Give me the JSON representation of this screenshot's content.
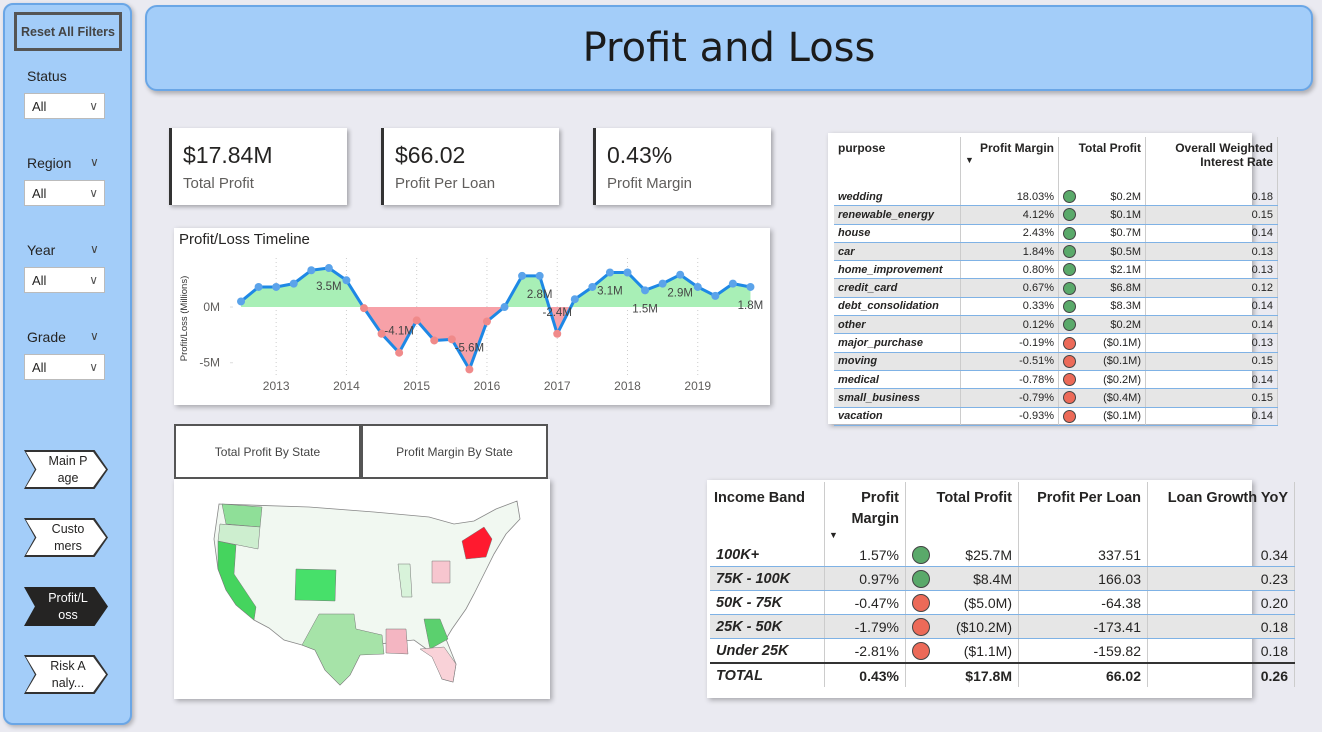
{
  "sidebar": {
    "reset_button": "Reset All Filters",
    "filters": [
      {
        "label": "Status",
        "value": "All"
      },
      {
        "label": "Region",
        "value": "All"
      },
      {
        "label": "Year",
        "value": "All"
      },
      {
        "label": "Grade",
        "value": "All"
      }
    ],
    "nav": [
      "Main Page",
      "Customers",
      "Profit/Loss",
      "Risk Analy..."
    ],
    "active_nav": 2
  },
  "header": {
    "title": "Profit and Loss"
  },
  "kpis": [
    {
      "value": "$17.84M",
      "label": "Total Profit"
    },
    {
      "value": "$66.02",
      "label": "Profit Per Loan"
    },
    {
      "value": "0.43%",
      "label": "Profit Margin"
    }
  ],
  "timeline": {
    "type": "line",
    "title": "Profit/Loss Timeline",
    "y_label": "Profit/Loss (Millions)",
    "x": [
      2012.5,
      2012.75,
      2013,
      2013.25,
      2013.5,
      2013.75,
      2014,
      2014.25,
      2014.5,
      2014.75,
      2015,
      2015.25,
      2015.5,
      2015.75,
      2016,
      2016.25,
      2016.5,
      2016.75,
      2017,
      2017.25,
      2017.5,
      2017.75,
      2018,
      2018.25,
      2018.5,
      2018.75,
      2019,
      2019.25,
      2019.5,
      2019.75
    ],
    "values": [
      0.5,
      1.8,
      1.8,
      2.1,
      3.3,
      3.5,
      2.4,
      -0.1,
      -2.4,
      -4.1,
      -1.2,
      -3.0,
      -2.9,
      -5.6,
      -1.3,
      0,
      2.8,
      2.8,
      -2.4,
      0.7,
      1.8,
      3.1,
      3.1,
      1.5,
      2.1,
      2.9,
      1.8,
      1.0,
      2.1,
      1.8
    ],
    "value_labels": [
      null,
      null,
      null,
      null,
      null,
      "3.5M",
      null,
      null,
      null,
      "-4.1M",
      null,
      null,
      null,
      "-5.6M",
      null,
      null,
      null,
      "2.8M",
      "-2.4M",
      null,
      null,
      "3.1M",
      null,
      "1.5M",
      null,
      "2.9M",
      null,
      null,
      null,
      "1.8M"
    ],
    "color": "#1e88e5",
    "positive_fill": "#a8efb6",
    "negative_fill": "#f7a1a8",
    "point_colors": {
      "positive": "#5ba3ea",
      "negative": "#f08a8a"
    },
    "xlim": [
      2012.4,
      2019.9
    ],
    "ylim": [
      -6.1,
      4.4
    ],
    "xticks": [
      2013,
      2014,
      2015,
      2016,
      2017,
      2018,
      2019
    ],
    "yticks": [
      {
        "value": 0,
        "label": "0M"
      },
      {
        "value": -5,
        "label": "-5M"
      }
    ],
    "grid": true
  },
  "map_tabs": [
    "Total Profit By State",
    "Profit Margin By State"
  ],
  "purpose_table": {
    "columns": [
      "purpose",
      "Profit Margin",
      "Total Profit",
      "Overall Weighted Interest Rate"
    ],
    "rows": [
      {
        "cells": [
          "wedding",
          "18.03%",
          "$0.2M",
          "0.18"
        ],
        "indicator": "#5aa96a"
      },
      {
        "cells": [
          "renewable_energy",
          "4.12%",
          "$0.1M",
          "0.15"
        ],
        "indicator": "#5aa96a"
      },
      {
        "cells": [
          "house",
          "2.43%",
          "$0.7M",
          "0.14"
        ],
        "indicator": "#5aa96a"
      },
      {
        "cells": [
          "car",
          "1.84%",
          "$0.5M",
          "0.13"
        ],
        "indicator": "#5aa96a"
      },
      {
        "cells": [
          "home_improvement",
          "0.80%",
          "$2.1M",
          "0.13"
        ],
        "indicator": "#5aa96a"
      },
      {
        "cells": [
          "credit_card",
          "0.67%",
          "$6.8M",
          "0.12"
        ],
        "indicator": "#5aa96a"
      },
      {
        "cells": [
          "debt_consolidation",
          "0.33%",
          "$8.3M",
          "0.14"
        ],
        "indicator": "#5aa96a"
      },
      {
        "cells": [
          "other",
          "0.12%",
          "$0.2M",
          "0.14"
        ],
        "indicator": "#5aa96a"
      },
      {
        "cells": [
          "major_purchase",
          "-0.19%",
          "($0.1M)",
          "0.13"
        ],
        "indicator": "#ec6a58"
      },
      {
        "cells": [
          "moving",
          "-0.51%",
          "($0.1M)",
          "0.15"
        ],
        "indicator": "#ec6a58"
      },
      {
        "cells": [
          "medical",
          "-0.78%",
          "($0.2M)",
          "0.14"
        ],
        "indicator": "#ec6a58"
      },
      {
        "cells": [
          "small_business",
          "-0.79%",
          "($0.4M)",
          "0.15"
        ],
        "indicator": "#ec6a58"
      },
      {
        "cells": [
          "vacation",
          "-0.93%",
          "($0.1M)",
          "0.14"
        ],
        "indicator": "#ec6a58"
      }
    ]
  },
  "income_table": {
    "columns": [
      "Income Band",
      "Profit Margin",
      "Total Profit",
      "Profit Per Loan",
      "Loan Growth YoY"
    ],
    "rows": [
      {
        "cells": [
          "100K+",
          "1.57%",
          "$25.7M",
          "337.51",
          "0.34"
        ],
        "indicator": "#5aa96a"
      },
      {
        "cells": [
          "75K - 100K",
          "0.97%",
          "$8.4M",
          "166.03",
          "0.23"
        ],
        "indicator": "#5aa96a"
      },
      {
        "cells": [
          "50K - 75K",
          "-0.47%",
          "($5.0M)",
          "-64.38",
          "0.20"
        ],
        "indicator": "#ec6a58"
      },
      {
        "cells": [
          "25K - 50K",
          "-1.79%",
          "($10.2M)",
          "-173.41",
          "0.18"
        ],
        "indicator": "#ec6a58"
      },
      {
        "cells": [
          "Under 25K",
          "-2.81%",
          "($1.1M)",
          "-159.82",
          "0.18"
        ],
        "indicator": "#ec6a58"
      }
    ],
    "total": {
      "cells": [
        "TOTAL",
        "0.43%",
        "$17.8M",
        "66.02",
        "0.26"
      ]
    }
  }
}
